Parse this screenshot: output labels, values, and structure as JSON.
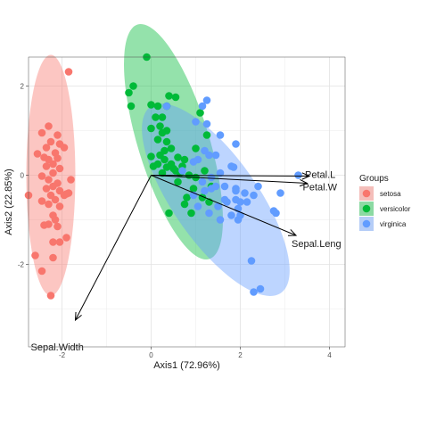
{
  "chart_data": {
    "type": "scatter",
    "subtype": "pca-biplot",
    "xlabel": "Axis1 (72.96%)",
    "ylabel": "Axis2 (22.85%)",
    "xlim": [
      -2.75,
      4.35
    ],
    "ylim": [
      -3.85,
      2.65
    ],
    "xticks": [
      -2,
      0,
      2,
      4
    ],
    "yticks": [
      -2,
      0,
      2
    ],
    "xtick_labels": [
      "-2",
      "0",
      "2",
      "4"
    ],
    "ytick_labels": [
      "-2",
      "0",
      "2"
    ],
    "grid": true,
    "legend": {
      "title": "Groups",
      "placement": "right"
    },
    "series": [
      {
        "name": "setosa",
        "color": "#F8766D",
        "ellipse": {
          "cx": -2.25,
          "cy": 0.0,
          "rx": 0.55,
          "ry": 2.7,
          "angle": 0
        },
        "points": [
          [
            -1.85,
            2.32
          ],
          [
            -2.3,
            1.1
          ],
          [
            -2.45,
            0.95
          ],
          [
            -2.1,
            0.9
          ],
          [
            -2.25,
            0.75
          ],
          [
            -2.05,
            0.7
          ],
          [
            -1.95,
            0.62
          ],
          [
            -2.35,
            0.62
          ],
          [
            -2.15,
            0.5
          ],
          [
            -2.55,
            0.48
          ],
          [
            -2.4,
            0.4
          ],
          [
            -2.3,
            0.35
          ],
          [
            -2.1,
            0.38
          ],
          [
            -2.2,
            0.25
          ],
          [
            -2.35,
            0.2
          ],
          [
            -2.05,
            0.15
          ],
          [
            -2.2,
            0.05
          ],
          [
            -2.45,
            -0.02
          ],
          [
            -2.3,
            -0.1
          ],
          [
            -2.1,
            -0.18
          ],
          [
            -2.2,
            -0.25
          ],
          [
            -1.8,
            -0.1
          ],
          [
            -2.35,
            -0.3
          ],
          [
            -2.05,
            -0.35
          ],
          [
            -1.95,
            -0.45
          ],
          [
            -1.85,
            -0.4
          ],
          [
            -2.25,
            -0.45
          ],
          [
            -1.9,
            -0.42
          ],
          [
            -2.15,
            -0.55
          ],
          [
            -2.45,
            -0.58
          ],
          [
            -2.3,
            -0.65
          ],
          [
            -2.05,
            -0.7
          ],
          [
            -2.75,
            -0.45
          ],
          [
            -2.2,
            -0.9
          ],
          [
            -2.15,
            -1.0
          ],
          [
            -2.3,
            -1.1
          ],
          [
            -2.4,
            -1.12
          ],
          [
            -2.1,
            -1.15
          ],
          [
            -1.9,
            -1.4
          ],
          [
            -2.05,
            -1.5
          ],
          [
            -2.2,
            -1.5
          ],
          [
            -2.6,
            -1.8
          ],
          [
            -2.2,
            -1.85
          ],
          [
            -2.45,
            -2.15
          ],
          [
            -2.25,
            -2.7
          ]
        ]
      },
      {
        "name": "versicolor",
        "color": "#00BA38",
        "ellipse": {
          "cx": 0.5,
          "cy": 0.75,
          "rx": 0.8,
          "ry": 2.75,
          "angle": -17
        },
        "points": [
          [
            -0.1,
            2.65
          ],
          [
            -0.4,
            2.0
          ],
          [
            -0.5,
            1.85
          ],
          [
            0.4,
            1.78
          ],
          [
            0.55,
            1.75
          ],
          [
            -0.45,
            1.55
          ],
          [
            0.0,
            1.58
          ],
          [
            0.15,
            1.55
          ],
          [
            0.35,
            1.55
          ],
          [
            0.1,
            1.3
          ],
          [
            0.25,
            1.3
          ],
          [
            0.2,
            1.1
          ],
          [
            0.0,
            1.05
          ],
          [
            0.35,
            1.0
          ],
          [
            0.25,
            0.95
          ],
          [
            0.15,
            0.8
          ],
          [
            0.35,
            0.75
          ],
          [
            0.45,
            0.6
          ],
          [
            0.3,
            0.55
          ],
          [
            0.6,
            0.4
          ],
          [
            0.2,
            0.45
          ],
          [
            0.0,
            0.42
          ],
          [
            0.3,
            0.35
          ],
          [
            0.15,
            0.25
          ],
          [
            0.45,
            0.25
          ],
          [
            0.7,
            0.2
          ],
          [
            0.05,
            0.2
          ],
          [
            0.5,
            0.15
          ],
          [
            0.35,
            0.18
          ],
          [
            0.65,
            0.05
          ],
          [
            0.85,
            0.0
          ],
          [
            1.0,
            -0.05
          ],
          [
            1.2,
            0.1
          ],
          [
            0.6,
            -0.15
          ],
          [
            0.95,
            -0.3
          ],
          [
            1.15,
            -0.5
          ],
          [
            0.8,
            -0.5
          ],
          [
            0.75,
            -0.65
          ],
          [
            0.4,
            -0.85
          ],
          [
            0.9,
            -0.85
          ],
          [
            1.3,
            -0.6
          ],
          [
            1.1,
            1.4
          ],
          [
            1.25,
            0.9
          ],
          [
            1.0,
            0.6
          ],
          [
            0.75,
            0.35
          ],
          [
            0.55,
            0.1
          ],
          [
            1.35,
            -0.25
          ],
          [
            0.25,
            0.05
          ]
        ]
      },
      {
        "name": "virginica",
        "color": "#619CFF",
        "ellipse": {
          "cx": 1.45,
          "cy": -0.55,
          "rx": 0.95,
          "ry": 2.55,
          "angle": -35
        },
        "points": [
          [
            1.25,
            1.68
          ],
          [
            1.15,
            1.55
          ],
          [
            1.0,
            1.2
          ],
          [
            0.35,
            1.55
          ],
          [
            1.9,
            0.7
          ],
          [
            1.25,
            1.15
          ],
          [
            1.55,
            0.9
          ],
          [
            1.2,
            0.55
          ],
          [
            1.05,
            0.35
          ],
          [
            1.45,
            0.45
          ],
          [
            1.3,
            0.45
          ],
          [
            1.8,
            0.2
          ],
          [
            1.85,
            0.18
          ],
          [
            1.55,
            0.05
          ],
          [
            0.95,
            0.3
          ],
          [
            0.7,
            0.1
          ],
          [
            1.65,
            -0.25
          ],
          [
            1.35,
            -0.3
          ],
          [
            1.9,
            -0.35
          ],
          [
            2.1,
            -0.4
          ],
          [
            2.4,
            -0.25
          ],
          [
            2.9,
            -0.4
          ],
          [
            2.3,
            -0.45
          ],
          [
            3.3,
            0.0
          ],
          [
            2.8,
            -0.85
          ],
          [
            2.75,
            -0.8
          ],
          [
            1.9,
            -0.55
          ],
          [
            1.65,
            -0.55
          ],
          [
            2.0,
            -0.6
          ],
          [
            1.95,
            -0.75
          ],
          [
            1.5,
            -0.7
          ],
          [
            1.3,
            -0.85
          ],
          [
            1.05,
            -0.7
          ],
          [
            0.95,
            -0.45
          ],
          [
            1.15,
            -0.15
          ],
          [
            1.95,
            -1.0
          ],
          [
            1.55,
            -1.0
          ],
          [
            1.8,
            -0.9
          ],
          [
            2.0,
            -0.9
          ],
          [
            2.25,
            -1.92
          ],
          [
            2.45,
            -2.55
          ],
          [
            2.3,
            -2.62
          ],
          [
            1.45,
            -0.25
          ],
          [
            1.7,
            -0.6
          ],
          [
            1.9,
            -0.3
          ],
          [
            2.15,
            -0.6
          ],
          [
            1.35,
            -0.05
          ],
          [
            1.2,
            -0.35
          ]
        ]
      }
    ],
    "variables": [
      {
        "name": "Petal.Length",
        "label": "Petal.L",
        "x": 3.55,
        "y": -0.02
      },
      {
        "name": "Petal.Width",
        "label": "Petal.W",
        "x": 3.5,
        "y": -0.18
      },
      {
        "name": "Sepal.Length",
        "label": "Sepal.Leng",
        "x": 3.25,
        "y": -1.35
      },
      {
        "name": "Sepal.Width",
        "label": "Sepal.Width",
        "x": -1.7,
        "y": -3.25
      }
    ]
  }
}
